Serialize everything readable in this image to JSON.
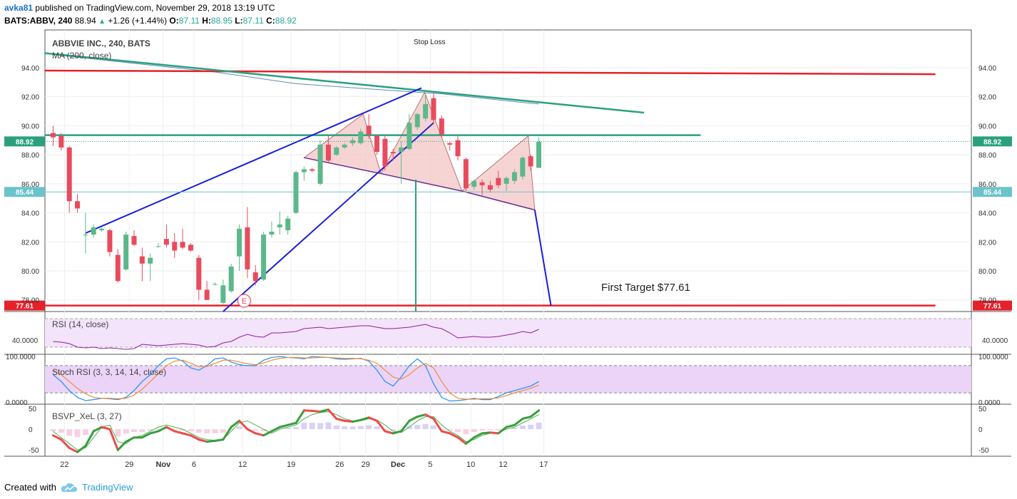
{
  "header": {
    "author": "avka81",
    "published": "published on TradingView.com, November 29, 2018 13:19 UTC",
    "symbol": "BATS:ABBV, 240",
    "last": "88.94",
    "change": "+1.26 (+1.44%)",
    "o_label": "O:",
    "o": "87.11",
    "h_label": "H:",
    "h": "88.95",
    "l_label": "L:",
    "l": "87.11",
    "c_label": "C:",
    "c": "88.92"
  },
  "footer": {
    "created_with": "Created with",
    "brand": "TradingView"
  },
  "colors": {
    "up": "#5cb88a",
    "down": "#e84b5d",
    "red_line": "#e52129",
    "green_line": "#2aa07f",
    "blue_line": "#1a1fd8",
    "pattern_fill": "#f3c5c5"
  },
  "chart_data": [
    {
      "type": "candlestick",
      "title": "ABBVIE INC., 240, BATS",
      "indicator": "MA (200, close)",
      "annotation_top": "Stop Loss",
      "annotation_target": "First Target $77.61",
      "earnings_marker": "E",
      "price_labels": {
        "current": "88.92",
        "level_mid": "85.44",
        "level_target": "77.61"
      },
      "y_ticks": [
        "94.00",
        "92.00",
        "90.00",
        "88.00",
        "86.00",
        "84.00",
        "82.00",
        "80.00",
        "78.00"
      ],
      "ylim": [
        77.2,
        96.6
      ],
      "x_ticks": [
        {
          "label": "22",
          "t": 1.4
        },
        {
          "label": "29",
          "t": 9.4
        },
        {
          "label": "Nov",
          "t": 13.6
        },
        {
          "label": "6",
          "t": 17.4
        },
        {
          "label": "12",
          "t": 23.4
        },
        {
          "label": "19",
          "t": 29.4
        },
        {
          "label": "26",
          "t": 35.4
        },
        {
          "label": "29",
          "t": 38.6
        },
        {
          "label": "Dec",
          "t": 42.6
        },
        {
          "label": "5",
          "t": 46.6
        },
        {
          "label": "10",
          "t": 51.6
        },
        {
          "label": "12",
          "t": 55.6
        },
        {
          "label": "17",
          "t": 60.6
        }
      ],
      "candles": [
        {
          "t": 0,
          "o": 89.5,
          "h": 90.0,
          "l": 88.6,
          "c": 89.2
        },
        {
          "t": 1,
          "o": 89.3,
          "h": 89.5,
          "l": 88.3,
          "c": 88.5
        },
        {
          "t": 2,
          "o": 88.5,
          "h": 88.6,
          "l": 84.0,
          "c": 84.8
        },
        {
          "t": 3,
          "o": 84.8,
          "h": 85.3,
          "l": 84.0,
          "c": 84.3
        },
        {
          "t": 4,
          "o": 82.5,
          "h": 84.0,
          "l": 81.2,
          "c": 82.5
        },
        {
          "t": 5,
          "o": 82.5,
          "h": 83.2,
          "l": 82.3,
          "c": 83.0
        },
        {
          "t": 6,
          "o": 82.8,
          "h": 83.0,
          "l": 82.7,
          "c": 82.9
        },
        {
          "t": 7,
          "o": 82.8,
          "h": 82.9,
          "l": 81.0,
          "c": 81.3
        },
        {
          "t": 8,
          "o": 81.1,
          "h": 81.5,
          "l": 79.2,
          "c": 79.3
        },
        {
          "t": 9,
          "o": 80.1,
          "h": 82.7,
          "l": 80.0,
          "c": 82.5
        },
        {
          "t": 10,
          "o": 82.4,
          "h": 82.8,
          "l": 81.7,
          "c": 81.8
        },
        {
          "t": 11,
          "o": 81.0,
          "h": 81.6,
          "l": 79.3,
          "c": 80.5
        },
        {
          "t": 12,
          "o": 80.5,
          "h": 81.2,
          "l": 79.3,
          "c": 80.9
        },
        {
          "t": 13,
          "o": 81.7,
          "h": 81.9,
          "l": 81.6,
          "c": 81.7
        },
        {
          "t": 14,
          "o": 82.2,
          "h": 83.2,
          "l": 81.6,
          "c": 81.8
        },
        {
          "t": 15,
          "o": 82.0,
          "h": 82.6,
          "l": 80.9,
          "c": 81.4
        },
        {
          "t": 16,
          "o": 82.0,
          "h": 82.9,
          "l": 81.5,
          "c": 81.6
        },
        {
          "t": 17,
          "o": 81.8,
          "h": 81.9,
          "l": 81.3,
          "c": 81.4
        },
        {
          "t": 18,
          "o": 80.9,
          "h": 81.1,
          "l": 78.0,
          "c": 78.7
        },
        {
          "t": 19,
          "o": 78.7,
          "h": 79.3,
          "l": 78.0,
          "c": 78.0
        },
        {
          "t": 20,
          "o": 79.1,
          "h": 79.2,
          "l": 79.0,
          "c": 79.1
        },
        {
          "t": 21,
          "o": 77.8,
          "h": 79.4,
          "l": 77.7,
          "c": 79.0
        },
        {
          "t": 22,
          "o": 78.6,
          "h": 80.5,
          "l": 78.5,
          "c": 80.3
        },
        {
          "t": 23,
          "o": 81.0,
          "h": 83.2,
          "l": 80.0,
          "c": 82.9
        },
        {
          "t": 24,
          "o": 83.0,
          "h": 84.4,
          "l": 79.5,
          "c": 80.1
        },
        {
          "t": 25,
          "o": 79.9,
          "h": 80.4,
          "l": 79.0,
          "c": 79.3
        },
        {
          "t": 26,
          "o": 79.4,
          "h": 82.7,
          "l": 79.3,
          "c": 82.5
        },
        {
          "t": 27,
          "o": 82.5,
          "h": 83.4,
          "l": 82.3,
          "c": 82.7
        },
        {
          "t": 28,
          "o": 83.0,
          "h": 84.1,
          "l": 82.5,
          "c": 83.2
        },
        {
          "t": 29,
          "o": 82.8,
          "h": 83.8,
          "l": 82.5,
          "c": 83.6
        },
        {
          "t": 30,
          "o": 84.0,
          "h": 86.9,
          "l": 83.9,
          "c": 86.8
        },
        {
          "t": 31,
          "o": 86.8,
          "h": 87.2,
          "l": 86.2,
          "c": 87.0
        },
        {
          "t": 32,
          "o": 87.0,
          "h": 87.1,
          "l": 86.8,
          "c": 86.9
        },
        {
          "t": 33,
          "o": 86.0,
          "h": 89.0,
          "l": 85.9,
          "c": 88.7
        },
        {
          "t": 34,
          "o": 88.7,
          "h": 89.3,
          "l": 87.5,
          "c": 87.6
        },
        {
          "t": 35,
          "o": 88.0,
          "h": 88.6,
          "l": 87.9,
          "c": 88.5
        },
        {
          "t": 36,
          "o": 88.5,
          "h": 88.8,
          "l": 88.4,
          "c": 88.7
        },
        {
          "t": 37,
          "o": 88.8,
          "h": 89.2,
          "l": 88.6,
          "c": 89.0
        },
        {
          "t": 38,
          "o": 88.8,
          "h": 89.8,
          "l": 88.7,
          "c": 89.6
        },
        {
          "t": 39,
          "o": 90.0,
          "h": 90.8,
          "l": 89.1,
          "c": 89.4
        },
        {
          "t": 40,
          "o": 89.3,
          "h": 89.4,
          "l": 88.0,
          "c": 88.2
        },
        {
          "t": 41,
          "o": 89.1,
          "h": 89.3,
          "l": 86.9,
          "c": 87.2
        },
        {
          "t": 42,
          "o": 88.2,
          "h": 88.4,
          "l": 87.6,
          "c": 88.1
        },
        {
          "t": 43,
          "o": 88.2,
          "h": 88.9,
          "l": 86.0,
          "c": 88.5
        },
        {
          "t": 44,
          "o": 88.4,
          "h": 90.8,
          "l": 88.3,
          "c": 90.2
        },
        {
          "t": 45,
          "o": 89.9,
          "h": 90.9,
          "l": 89.7,
          "c": 90.8
        },
        {
          "t": 46,
          "o": 90.5,
          "h": 92.2,
          "l": 90.3,
          "c": 91.5
        },
        {
          "t": 47,
          "o": 91.9,
          "h": 92.3,
          "l": 90.1,
          "c": 90.4
        },
        {
          "t": 48,
          "o": 90.5,
          "h": 90.7,
          "l": 89.2,
          "c": 89.4
        },
        {
          "t": 49,
          "o": 88.8,
          "h": 88.9,
          "l": 88.3,
          "c": 88.7
        },
        {
          "t": 50,
          "o": 89.0,
          "h": 89.3,
          "l": 87.6,
          "c": 87.9
        },
        {
          "t": 51,
          "o": 87.7,
          "h": 87.8,
          "l": 85.5,
          "c": 85.7
        },
        {
          "t": 52,
          "o": 85.8,
          "h": 86.3,
          "l": 85.6,
          "c": 86.2
        },
        {
          "t": 53,
          "o": 86.1,
          "h": 86.3,
          "l": 85.2,
          "c": 85.9
        },
        {
          "t": 54,
          "o": 85.9,
          "h": 86.2,
          "l": 85.4,
          "c": 85.6
        },
        {
          "t": 55,
          "o": 86.4,
          "h": 86.9,
          "l": 85.7,
          "c": 85.9
        },
        {
          "t": 56,
          "o": 86.0,
          "h": 86.5,
          "l": 85.5,
          "c": 86.4
        },
        {
          "t": 57,
          "o": 86.2,
          "h": 87.0,
          "l": 86.0,
          "c": 86.8
        },
        {
          "t": 58,
          "o": 86.5,
          "h": 87.9,
          "l": 86.3,
          "c": 87.8
        },
        {
          "t": 59,
          "o": 87.9,
          "h": 88.0,
          "l": 86.9,
          "c": 87.2
        },
        {
          "t": 60,
          "o": 87.1,
          "h": 89.2,
          "l": 87.1,
          "c": 88.9
        }
      ],
      "ma200": [
        [
          0,
          94.9
        ],
        [
          10,
          94.3
        ],
        [
          20,
          93.7
        ],
        [
          30,
          92.9
        ],
        [
          40,
          92.5
        ],
        [
          48,
          92.2
        ],
        [
          58,
          91.6
        ],
        [
          60,
          91.5
        ]
      ],
      "drawings": {
        "horizontal_red_top": [
          [
            -1,
            93.8
          ],
          [
            109,
            93.55
          ]
        ],
        "horizontal_red_target": [
          [
            -1,
            77.61
          ],
          [
            109,
            77.61
          ]
        ],
        "green_trend_down": [
          [
            -1,
            95.0
          ],
          [
            73,
            90.9
          ]
        ],
        "green_horizontal": [
          [
            -1,
            89.35
          ],
          [
            80,
            89.35
          ]
        ],
        "green_vertical_x": 44.8,
        "blue_wedge_upper": [
          [
            4,
            82.6
          ],
          [
            45.5,
            92.6
          ]
        ],
        "blue_wedge_lower": [
          [
            21,
            77.2
          ],
          [
            47,
            90.2
          ]
        ],
        "blue_target_leg": [
          [
            59.5,
            84.2
          ],
          [
            61.5,
            77.61
          ]
        ],
        "neckline": [
          [
            31,
            87.8
          ],
          [
            40.5,
            86.7
          ],
          [
            50.5,
            85.5
          ],
          [
            59.5,
            84.2
          ]
        ],
        "triangles": [
          [
            [
              31,
              87.8
            ],
            [
              38.3,
              90.8
            ],
            [
              40.5,
              86.7
            ]
          ],
          [
            [
              40.5,
              86.7
            ],
            [
              45.9,
              92.3
            ],
            [
              50.5,
              85.5
            ]
          ],
          [
            [
              50.5,
              85.5
            ],
            [
              58.7,
              89.3
            ],
            [
              59.5,
              84.2
            ]
          ]
        ],
        "mid_level": 85.44,
        "current_level": 88.92,
        "earnings_t": 23.6
      }
    },
    {
      "type": "line",
      "title": "RSI (14, close)",
      "tick_label": "40.0000",
      "band": [
        30,
        70
      ],
      "ylim": [
        20,
        80
      ],
      "tick_value": 40,
      "values": [
        38,
        37,
        35,
        30,
        29,
        30,
        28,
        29,
        28,
        27,
        28,
        34,
        33,
        32,
        33,
        34,
        35,
        34,
        33,
        30,
        31,
        36,
        38,
        44,
        48,
        45,
        44,
        50,
        50,
        51,
        52,
        56,
        57,
        58,
        56,
        57,
        58,
        59,
        60,
        60,
        58,
        56,
        56,
        57,
        58,
        60,
        62,
        58,
        56,
        50,
        43,
        44,
        45,
        44,
        44,
        45,
        47,
        49,
        52,
        50,
        55
      ]
    },
    {
      "type": "line",
      "title": "Stoch RSI (3, 3, 14, 14, close)",
      "tick_labels": [
        "100.0000",
        "0.0000"
      ],
      "band": [
        20,
        80
      ],
      "ylim": [
        -5,
        105
      ],
      "series": [
        {
          "name": "K",
          "values": [
            60,
            45,
            25,
            10,
            3,
            5,
            8,
            7,
            5,
            10,
            25,
            45,
            60,
            80,
            95,
            97,
            90,
            75,
            70,
            80,
            95,
            97,
            88,
            82,
            80,
            80,
            92,
            98,
            100,
            98,
            97,
            95,
            100,
            99,
            98,
            95,
            94,
            95,
            96,
            90,
            70,
            45,
            35,
            55,
            80,
            95,
            80,
            40,
            10,
            2,
            3,
            5,
            8,
            5,
            5,
            12,
            20,
            25,
            30,
            35,
            45
          ]
        },
        {
          "name": "D",
          "values": [
            70,
            60,
            45,
            30,
            18,
            10,
            8,
            8,
            7,
            8,
            15,
            28,
            45,
            62,
            80,
            90,
            92,
            85,
            78,
            78,
            85,
            92,
            92,
            88,
            84,
            82,
            86,
            92,
            96,
            98,
            98,
            97,
            97,
            98,
            98,
            97,
            96,
            96,
            95,
            92,
            85,
            70,
            55,
            50,
            60,
            75,
            85,
            75,
            45,
            20,
            8,
            6,
            6,
            7,
            7,
            9,
            14,
            20,
            25,
            30,
            37
          ]
        }
      ]
    },
    {
      "type": "line",
      "title": "BSVP_XeL (3, 27)",
      "tick_labels": [
        "50",
        "0",
        "-50"
      ],
      "ylim": [
        -65,
        60
      ],
      "series": [
        {
          "name": "fast",
          "values": [
            -15,
            -25,
            -45,
            -55,
            -40,
            -5,
            5,
            0,
            -50,
            -30,
            -20,
            -20,
            -10,
            -5,
            5,
            -5,
            -10,
            -15,
            -25,
            -30,
            -28,
            -25,
            5,
            20,
            0,
            -10,
            -15,
            -5,
            5,
            10,
            15,
            45,
            44,
            42,
            47,
            25,
            20,
            18,
            22,
            28,
            20,
            -5,
            -10,
            -5,
            20,
            30,
            35,
            25,
            -5,
            -10,
            -20,
            -35,
            -20,
            -10,
            -8,
            -10,
            5,
            10,
            25,
            30,
            45
          ]
        },
        {
          "name": "slow",
          "values": [
            -5,
            -20,
            -35,
            -50,
            -45,
            -20,
            5,
            10,
            -30,
            -35,
            -20,
            -15,
            -5,
            5,
            10,
            5,
            0,
            -10,
            -20,
            -25,
            -27,
            -25,
            -5,
            15,
            20,
            10,
            0,
            -10,
            0,
            5,
            10,
            25,
            35,
            40,
            42,
            35,
            25,
            20,
            20,
            25,
            22,
            10,
            -5,
            -8,
            5,
            20,
            30,
            30,
            10,
            -5,
            -15,
            -30,
            -25,
            -15,
            -10,
            -8,
            0,
            5,
            15,
            25,
            35
          ]
        }
      ]
    }
  ]
}
